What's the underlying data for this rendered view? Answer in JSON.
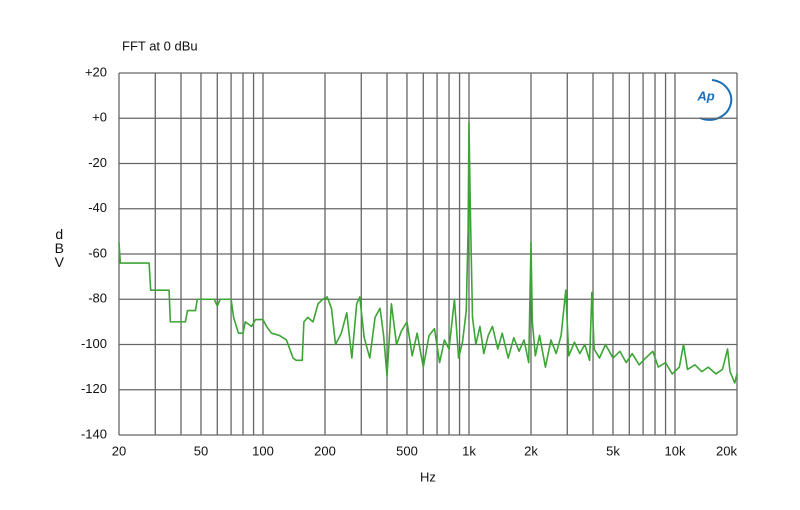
{
  "chart_data": {
    "type": "line",
    "title": "FFT at 0 dBu",
    "xlabel": "Hz",
    "ylabel": "dBV",
    "logo": "Ap",
    "xscale": "log",
    "grid": true,
    "xlim": [
      20,
      20000
    ],
    "ylim": [
      -140,
      20
    ],
    "xticks": [
      20,
      50,
      100,
      200,
      500,
      {
        "value": 1000,
        "label": "1k"
      },
      {
        "value": 2000,
        "label": "2k"
      },
      {
        "value": 5000,
        "label": "5k"
      },
      {
        "value": 10000,
        "label": "10k"
      },
      {
        "value": 20000,
        "label": "20k"
      }
    ],
    "xminor": [
      30,
      40,
      60,
      70,
      80,
      90,
      300,
      400,
      600,
      700,
      800,
      900,
      3000,
      4000,
      6000,
      7000,
      8000,
      9000
    ],
    "yticks": [
      {
        "value": 20,
        "label": "+20"
      },
      {
        "value": 0,
        "label": "+0"
      },
      -20,
      -40,
      -60,
      -80,
      -100,
      -120,
      -140
    ],
    "series": [
      {
        "color": "#3da535",
        "x": [
          20,
          20.3,
          28,
          28.5,
          35,
          35.5,
          42,
          43,
          47,
          48,
          58,
          60,
          62,
          70,
          72,
          76,
          80,
          82,
          88,
          92,
          100,
          104,
          110,
          120,
          130,
          140,
          145,
          155,
          158,
          165,
          175,
          185,
          195,
          205,
          215,
          225,
          240,
          255,
          270,
          285,
          295,
          310,
          330,
          350,
          370,
          385,
          400,
          420,
          445,
          470,
          500,
          530,
          560,
          600,
          640,
          680,
          720,
          760,
          800,
          850,
          890,
          930,
          970,
          990,
          1000,
          1015,
          1040,
          1080,
          1130,
          1180,
          1240,
          1300,
          1380,
          1450,
          1550,
          1650,
          1750,
          1850,
          1950,
          2000,
          2030,
          2100,
          2200,
          2350,
          2500,
          2650,
          2800,
          2950,
          3050,
          3250,
          3450,
          3650,
          3850,
          3950,
          4050,
          4300,
          4600,
          5000,
          5400,
          5800,
          6200,
          6700,
          7200,
          7800,
          8300,
          9000,
          9700,
          10500,
          11000,
          11500,
          12500,
          13500,
          14500,
          15800,
          17000,
          18000,
          18500,
          19500,
          20000
        ],
        "values": [
          -55,
          -64,
          -64,
          -76,
          -76,
          -90,
          -90,
          -85,
          -85,
          -80,
          -80,
          -83,
          -80,
          -80,
          -88,
          -95,
          -95,
          -90,
          -92,
          -89,
          -89,
          -92,
          -95,
          -96,
          -98,
          -106,
          -107,
          -107,
          -90,
          -88,
          -90,
          -82,
          -80,
          -79,
          -84,
          -100,
          -95,
          -86,
          -106,
          -82,
          -79,
          -97,
          -106,
          -88,
          -84,
          -96,
          -114,
          -82,
          -100,
          -94,
          -90,
          -105,
          -95,
          -110,
          -96,
          -93,
          -108,
          -98,
          -102,
          -80,
          -106,
          -99,
          -85,
          -50,
          -2,
          -40,
          -88,
          -100,
          -92,
          -104,
          -96,
          -92,
          -102,
          -95,
          -106,
          -97,
          -103,
          -98,
          -108,
          -55,
          -90,
          -105,
          -96,
          -110,
          -98,
          -104,
          -96,
          -76,
          -105,
          -99,
          -104,
          -100,
          -107,
          -77,
          -102,
          -106,
          -100,
          -106,
          -103,
          -108,
          -104,
          -109,
          -106,
          -103,
          -110,
          -108,
          -113,
          -110,
          -100,
          -111,
          -109,
          -112,
          -110,
          -113,
          -111,
          -102,
          -112,
          -117,
          -113
        ]
      }
    ]
  }
}
